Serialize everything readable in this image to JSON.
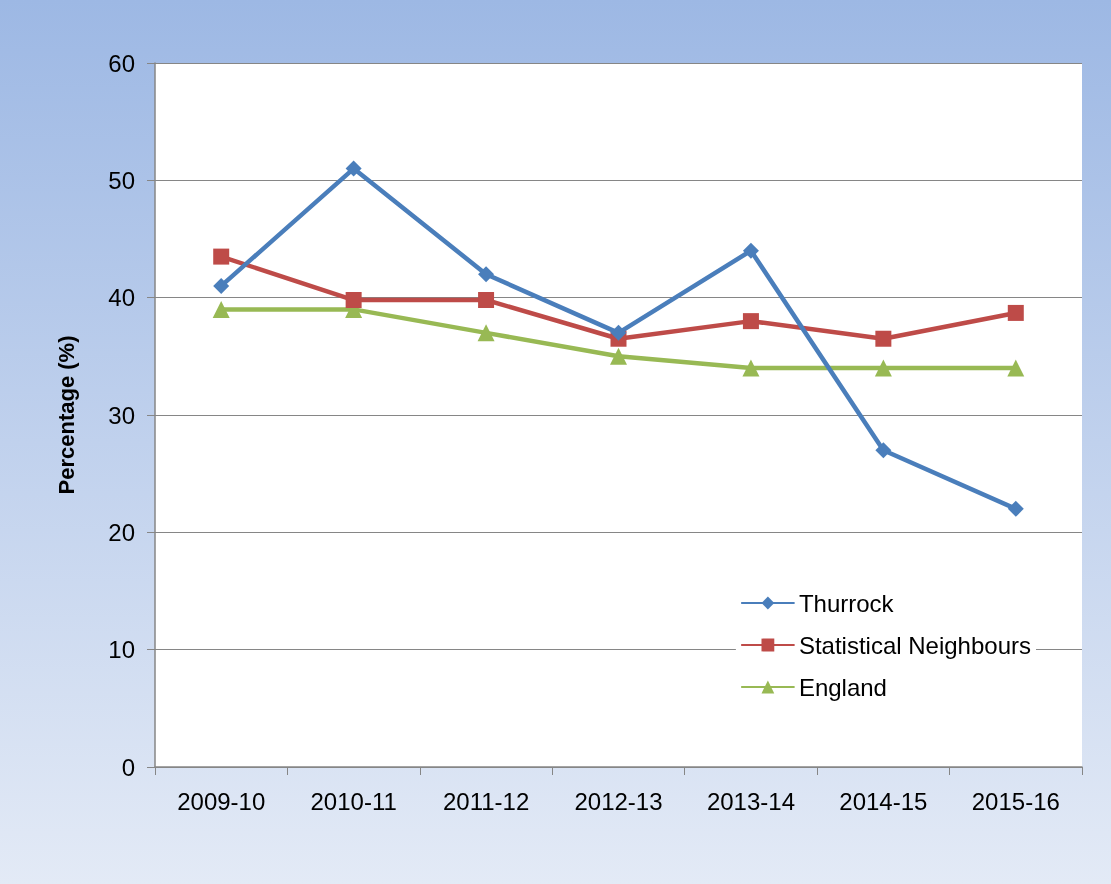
{
  "chart_data": {
    "type": "line",
    "ylabel": "Percentage (%)",
    "categories": [
      "2009-10",
      "2010-11",
      "2011-12",
      "2012-13",
      "2013-14",
      "2014-15",
      "2015-16"
    ],
    "series": [
      {
        "name": "Thurrock",
        "color": "#4a7ebb",
        "marker": "diamond",
        "values": [
          41,
          51,
          42,
          37,
          44,
          27,
          22
        ]
      },
      {
        "name": "Statistical Neighbours",
        "color": "#be4b48",
        "marker": "square",
        "values": [
          43.5,
          39.8,
          39.8,
          36.5,
          38,
          36.5,
          38.7
        ]
      },
      {
        "name": "England",
        "color": "#98b954",
        "marker": "triangle",
        "values": [
          39,
          39,
          37,
          35,
          34,
          34,
          34
        ]
      }
    ],
    "ylim": [
      0,
      60
    ],
    "yticks": [
      0,
      10,
      20,
      30,
      40,
      50,
      60
    ],
    "grid": "y",
    "legend": "bottom right"
  }
}
